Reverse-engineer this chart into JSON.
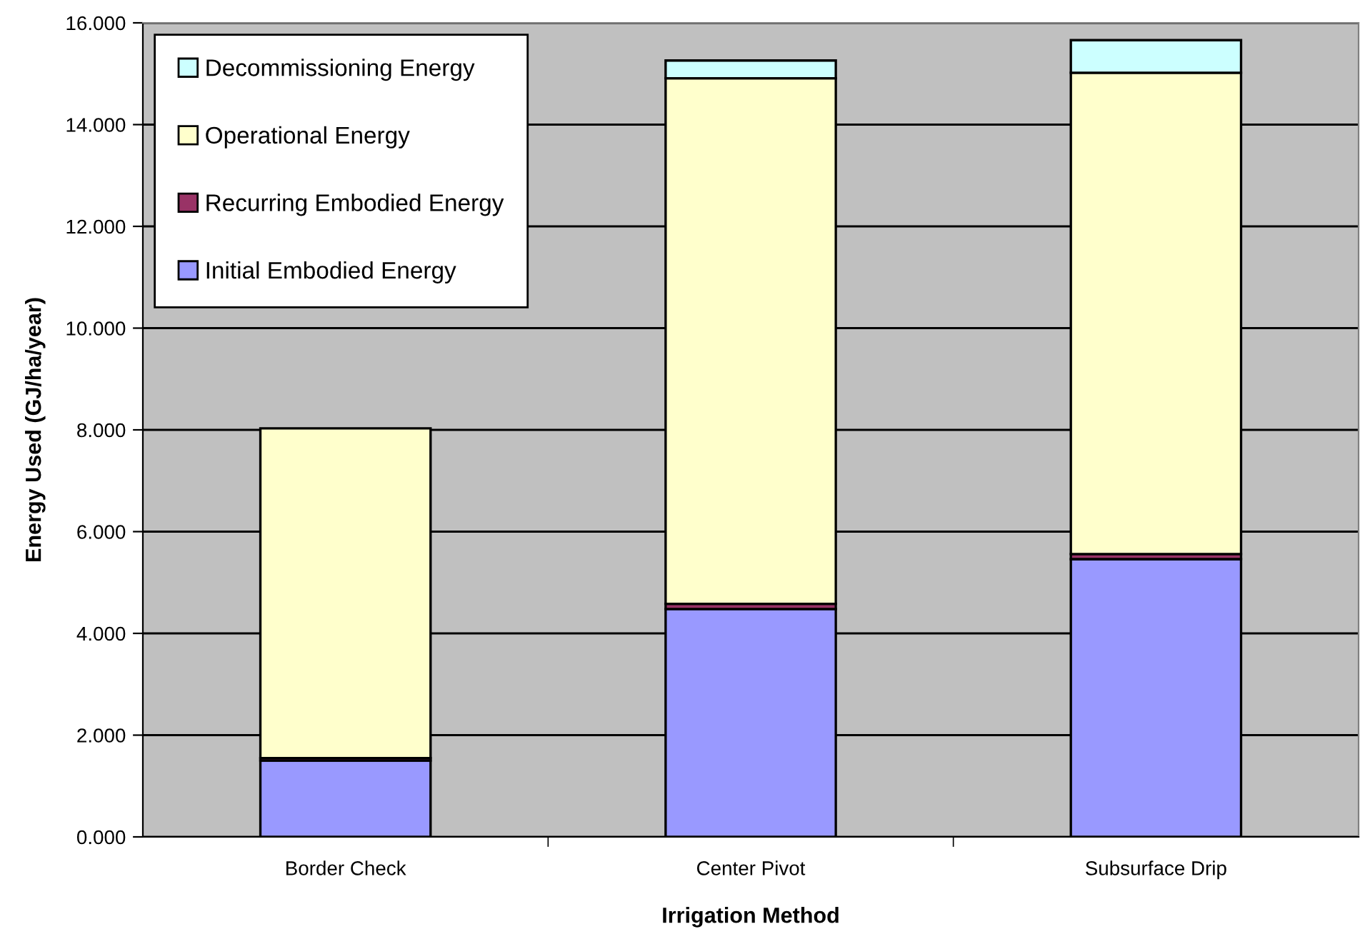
{
  "chart_data": {
    "type": "bar",
    "stacked": true,
    "xlabel": "Irrigation Method",
    "ylabel": "Energy Used (GJ/ha/year)",
    "categories": [
      "Border Check",
      "Center Pivot",
      "Subsurface Drip"
    ],
    "series": [
      {
        "name": "Initial Embodied Energy",
        "color": "#9999ff",
        "values": [
          1.5,
          4.48,
          5.46
        ]
      },
      {
        "name": "Recurring Embodied Energy",
        "color": "#993366",
        "values": [
          0.05,
          0.1,
          0.1
        ]
      },
      {
        "name": "Operational Energy",
        "color": "#ffffcc",
        "values": [
          6.48,
          10.33,
          9.46
        ]
      },
      {
        "name": "Decommissioning Energy",
        "color": "#ccffff",
        "values": [
          null,
          0.35,
          0.64
        ]
      }
    ],
    "ylim": [
      0,
      16
    ],
    "yticks": [
      {
        "value": 0,
        "label": "0.000"
      },
      {
        "value": 2,
        "label": "2.000"
      },
      {
        "value": 4,
        "label": "4.000"
      },
      {
        "value": 6,
        "label": "6.000"
      },
      {
        "value": 8,
        "label": "8.000"
      },
      {
        "value": 10,
        "label": "10.000"
      },
      {
        "value": 12,
        "label": "12.000"
      },
      {
        "value": 14,
        "label": "14.000"
      },
      {
        "value": 16,
        "label": "16.000"
      }
    ],
    "grid": "y",
    "legend": "top left"
  }
}
